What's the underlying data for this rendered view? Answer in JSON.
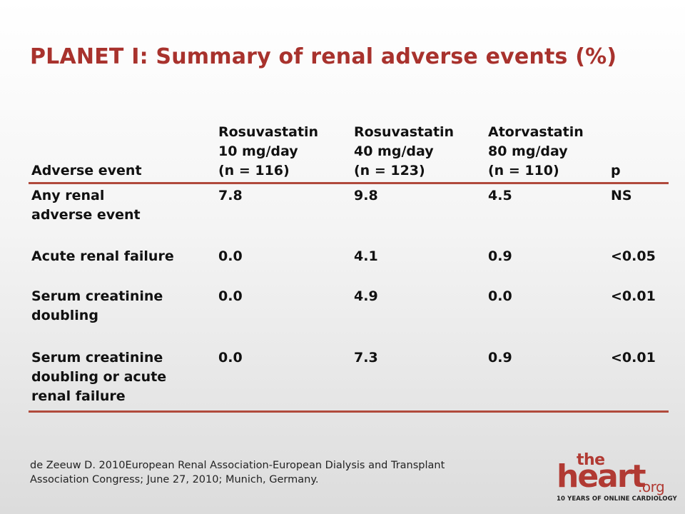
{
  "title": "PLANET I: Summary of renal adverse events (%)",
  "table": {
    "headers": [
      [
        "Adverse event"
      ],
      [
        "Rosuvastatin",
        "10 mg/day",
        "(n = 116)"
      ],
      [
        "Rosuvastatin",
        "40 mg/day",
        "(n = 123)"
      ],
      [
        "Atorvastatin",
        "80 mg/day",
        "(n = 110)"
      ],
      [
        "p"
      ]
    ],
    "rows": [
      {
        "event": [
          "Any renal",
          "adverse event"
        ],
        "ros10": "7.8",
        "ros40": "9.8",
        "ator80": "4.5",
        "p": "NS"
      },
      {
        "event": [
          "Acute renal failure"
        ],
        "ros10": "0.0",
        "ros40": "4.1",
        "ator80": "0.9",
        "p": "<0.05"
      },
      {
        "event": [
          "Serum creatinine",
          "doubling"
        ],
        "ros10": "0.0",
        "ros40": "4.9",
        "ator80": "0.0",
        "p": "<0.01"
      },
      {
        "event": [
          "Serum creatinine",
          "doubling or acute",
          "renal failure"
        ],
        "ros10": "0.0",
        "ros40": "7.3",
        "ator80": "0.9",
        "p": "<0.01"
      }
    ]
  },
  "reference": [
    "de Zeeuw D. 2010European Renal Association-European Dialysis and Transplant",
    "Association Congress; June 27, 2010; Munich, Germany."
  ],
  "logo": {
    "the": "the",
    "heart": "heart",
    "org": ".org",
    "tagline": "10 YEARS OF ONLINE CARDIOLOGY"
  },
  "colors": {
    "title": "#a8322d",
    "rule": "#b04a3c",
    "logo": "#b13a33"
  }
}
